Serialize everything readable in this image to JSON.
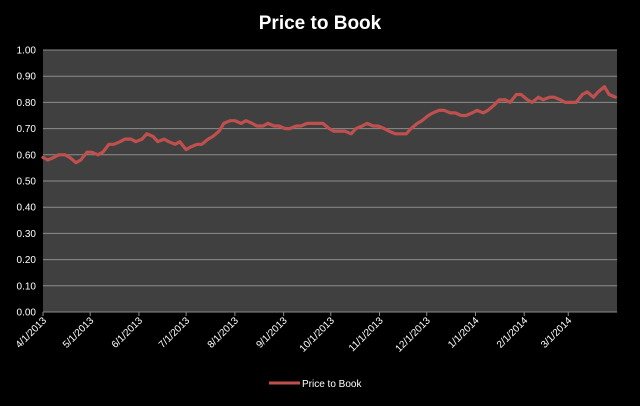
{
  "chart_data": {
    "type": "line",
    "title": "Price to Book",
    "xlabel": "",
    "ylabel": "",
    "ylim": [
      0,
      1.0
    ],
    "xlim": [
      "2013-04-01",
      "2014-04-01"
    ],
    "yticks": [
      "0.00",
      "0.10",
      "0.20",
      "0.30",
      "0.40",
      "0.50",
      "0.60",
      "0.70",
      "0.80",
      "0.90",
      "1.00"
    ],
    "xticks": [
      {
        "label": "4/1/2013",
        "date": "2013-04-01"
      },
      {
        "label": "5/1/2013",
        "date": "2013-05-01"
      },
      {
        "label": "6/1/2013",
        "date": "2013-06-01"
      },
      {
        "label": "7/1/2013",
        "date": "2013-07-01"
      },
      {
        "label": "8/1/2013",
        "date": "2013-08-01"
      },
      {
        "label": "9/1/2013",
        "date": "2013-09-01"
      },
      {
        "label": "10/1/2013",
        "date": "2013-10-01"
      },
      {
        "label": "11/1/2013",
        "date": "2013-11-01"
      },
      {
        "label": "12/1/2013",
        "date": "2013-12-01"
      },
      {
        "label": "1/1/2014",
        "date": "2014-01-01"
      },
      {
        "label": "2/1/2014",
        "date": "2014-02-01"
      },
      {
        "label": "3/1/2014",
        "date": "2014-03-01"
      }
    ],
    "grid": true,
    "legend": "bottom",
    "colors": {
      "series": "#c0504d",
      "plot_bg": "#404040",
      "page_bg": "#000000",
      "grid": "#8c8c8c",
      "text": "#ffffff"
    },
    "series": [
      {
        "name": "Price to Book",
        "points": [
          [
            "2013-04-01",
            0.59
          ],
          [
            "2013-04-04",
            0.58
          ],
          [
            "2013-04-08",
            0.59
          ],
          [
            "2013-04-11",
            0.6
          ],
          [
            "2013-04-15",
            0.6
          ],
          [
            "2013-04-18",
            0.59
          ],
          [
            "2013-04-22",
            0.57
          ],
          [
            "2013-04-25",
            0.58
          ],
          [
            "2013-04-29",
            0.61
          ],
          [
            "2013-05-02",
            0.61
          ],
          [
            "2013-05-06",
            0.6
          ],
          [
            "2013-05-09",
            0.61
          ],
          [
            "2013-05-13",
            0.64
          ],
          [
            "2013-05-16",
            0.64
          ],
          [
            "2013-05-20",
            0.65
          ],
          [
            "2013-05-23",
            0.66
          ],
          [
            "2013-05-27",
            0.66
          ],
          [
            "2013-05-30",
            0.65
          ],
          [
            "2013-06-03",
            0.66
          ],
          [
            "2013-06-06",
            0.68
          ],
          [
            "2013-06-10",
            0.67
          ],
          [
            "2013-06-13",
            0.65
          ],
          [
            "2013-06-17",
            0.66
          ],
          [
            "2013-06-20",
            0.65
          ],
          [
            "2013-06-24",
            0.64
          ],
          [
            "2013-06-27",
            0.65
          ],
          [
            "2013-07-01",
            0.62
          ],
          [
            "2013-07-04",
            0.63
          ],
          [
            "2013-07-08",
            0.64
          ],
          [
            "2013-07-11",
            0.64
          ],
          [
            "2013-07-15",
            0.66
          ],
          [
            "2013-07-18",
            0.67
          ],
          [
            "2013-07-22",
            0.69
          ],
          [
            "2013-07-25",
            0.72
          ],
          [
            "2013-07-29",
            0.73
          ],
          [
            "2013-08-01",
            0.73
          ],
          [
            "2013-08-05",
            0.72
          ],
          [
            "2013-08-08",
            0.73
          ],
          [
            "2013-08-12",
            0.72
          ],
          [
            "2013-08-15",
            0.71
          ],
          [
            "2013-08-19",
            0.71
          ],
          [
            "2013-08-22",
            0.72
          ],
          [
            "2013-08-26",
            0.71
          ],
          [
            "2013-08-29",
            0.71
          ],
          [
            "2013-09-02",
            0.7
          ],
          [
            "2013-09-05",
            0.7
          ],
          [
            "2013-09-09",
            0.71
          ],
          [
            "2013-09-12",
            0.71
          ],
          [
            "2013-09-16",
            0.72
          ],
          [
            "2013-09-19",
            0.72
          ],
          [
            "2013-09-23",
            0.72
          ],
          [
            "2013-09-26",
            0.72
          ],
          [
            "2013-09-30",
            0.7
          ],
          [
            "2013-10-03",
            0.69
          ],
          [
            "2013-10-07",
            0.69
          ],
          [
            "2013-10-10",
            0.69
          ],
          [
            "2013-10-14",
            0.68
          ],
          [
            "2013-10-17",
            0.7
          ],
          [
            "2013-10-21",
            0.71
          ],
          [
            "2013-10-24",
            0.72
          ],
          [
            "2013-10-28",
            0.71
          ],
          [
            "2013-10-31",
            0.71
          ],
          [
            "2013-11-04",
            0.7
          ],
          [
            "2013-11-07",
            0.69
          ],
          [
            "2013-11-11",
            0.68
          ],
          [
            "2013-11-14",
            0.68
          ],
          [
            "2013-11-18",
            0.68
          ],
          [
            "2013-11-21",
            0.7
          ],
          [
            "2013-11-25",
            0.72
          ],
          [
            "2013-11-28",
            0.73
          ],
          [
            "2013-12-02",
            0.75
          ],
          [
            "2013-12-05",
            0.76
          ],
          [
            "2013-12-09",
            0.77
          ],
          [
            "2013-12-12",
            0.77
          ],
          [
            "2013-12-16",
            0.76
          ],
          [
            "2013-12-19",
            0.76
          ],
          [
            "2013-12-23",
            0.75
          ],
          [
            "2013-12-26",
            0.75
          ],
          [
            "2013-12-30",
            0.76
          ],
          [
            "2014-01-02",
            0.77
          ],
          [
            "2014-01-06",
            0.76
          ],
          [
            "2014-01-09",
            0.77
          ],
          [
            "2014-01-13",
            0.79
          ],
          [
            "2014-01-16",
            0.81
          ],
          [
            "2014-01-20",
            0.81
          ],
          [
            "2014-01-23",
            0.8
          ],
          [
            "2014-01-27",
            0.83
          ],
          [
            "2014-01-30",
            0.83
          ],
          [
            "2014-02-03",
            0.81
          ],
          [
            "2014-02-06",
            0.8
          ],
          [
            "2014-02-10",
            0.82
          ],
          [
            "2014-02-13",
            0.81
          ],
          [
            "2014-02-17",
            0.82
          ],
          [
            "2014-02-20",
            0.82
          ],
          [
            "2014-02-24",
            0.81
          ],
          [
            "2014-02-27",
            0.8
          ],
          [
            "2014-03-03",
            0.8
          ],
          [
            "2014-03-06",
            0.8
          ],
          [
            "2014-03-10",
            0.83
          ],
          [
            "2014-03-13",
            0.84
          ],
          [
            "2014-03-17",
            0.82
          ],
          [
            "2014-03-20",
            0.84
          ],
          [
            "2014-03-24",
            0.86
          ],
          [
            "2014-03-27",
            0.83
          ],
          [
            "2014-03-31",
            0.82
          ]
        ]
      }
    ]
  }
}
